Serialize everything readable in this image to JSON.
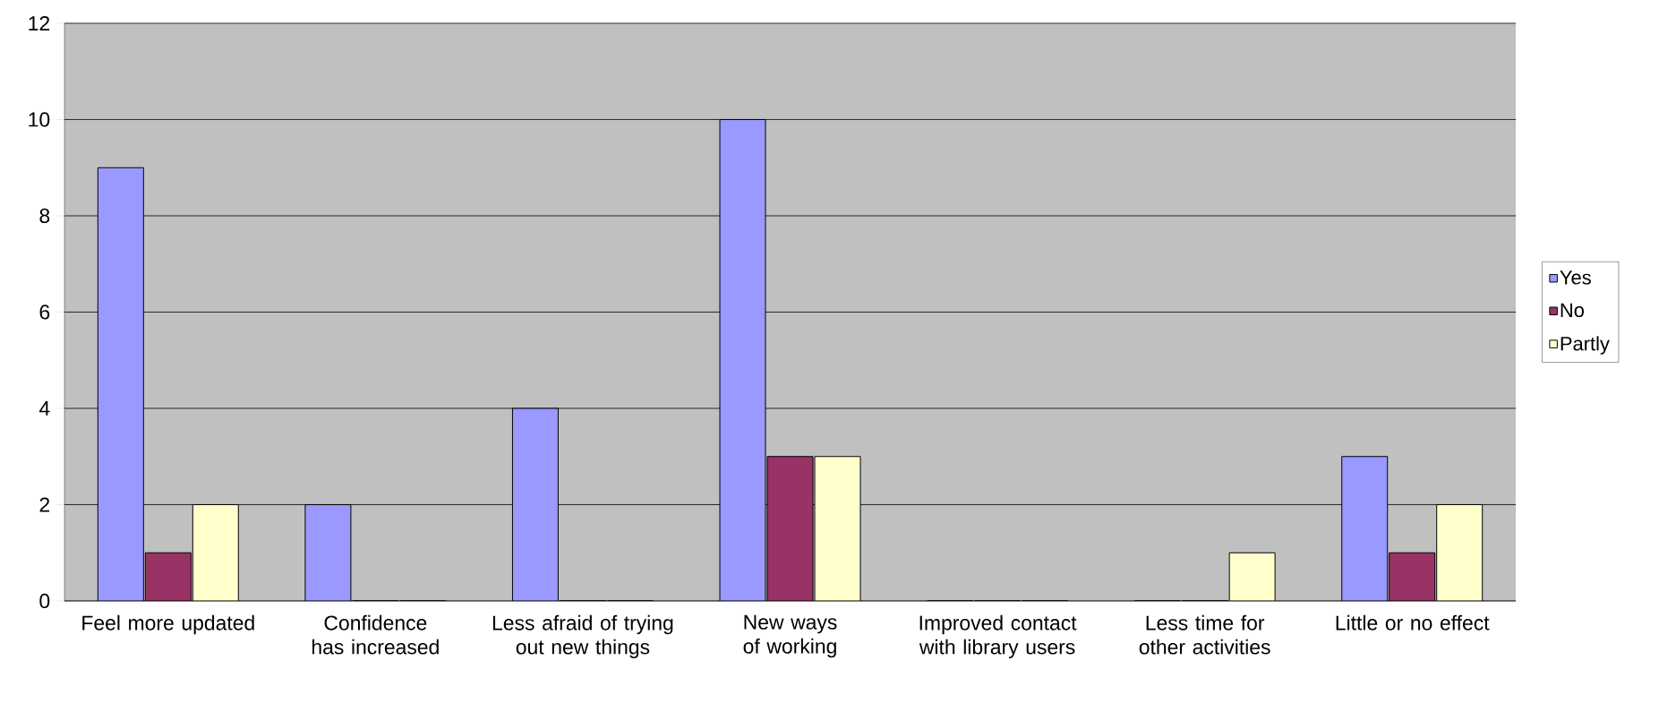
{
  "chart_data": {
    "type": "bar",
    "categories": [
      "Feel more updated",
      "Confidence has increased",
      "Less afraid of trying out new things",
      "New ways of working",
      "Improved contact with library users",
      "Less time for other activities",
      "Little or no effect"
    ],
    "series": [
      {
        "name": "Yes",
        "color": "#9999ff",
        "values": [
          9,
          2,
          4,
          10,
          0,
          0,
          3
        ]
      },
      {
        "name": "No",
        "color": "#993366",
        "values": [
          1,
          0,
          0,
          3,
          0,
          0,
          1
        ]
      },
      {
        "name": "Partly",
        "color": "#ffffcc",
        "values": [
          2,
          0,
          0,
          3,
          0,
          1,
          2
        ]
      }
    ],
    "ylim": [
      0,
      12
    ],
    "yticks": [
      0,
      2,
      4,
      6,
      8,
      10,
      12
    ],
    "grid": "y",
    "legend": "right"
  }
}
